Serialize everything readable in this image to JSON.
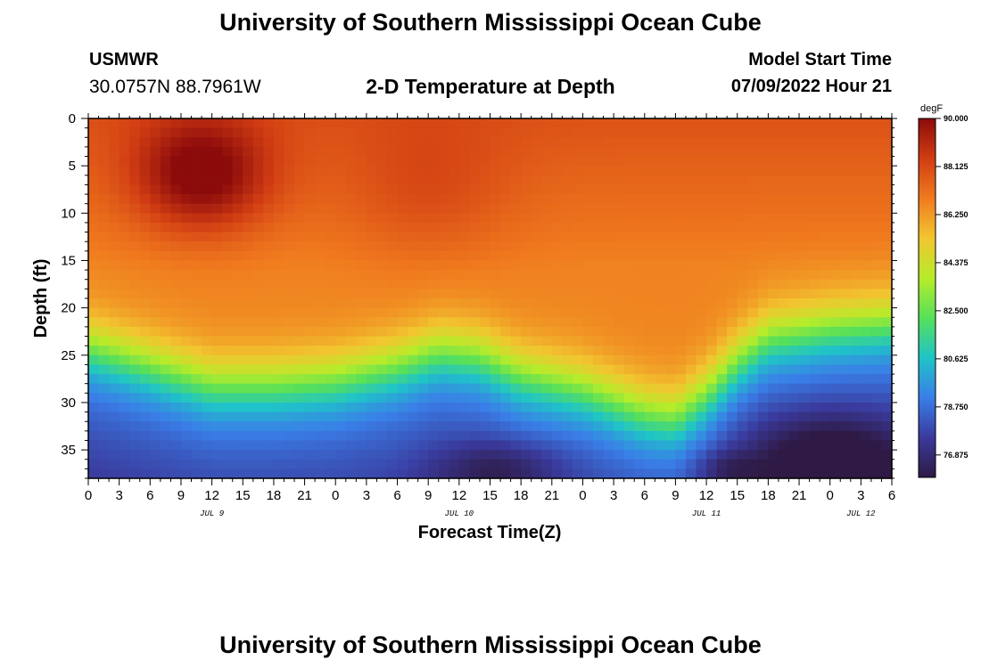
{
  "header": {
    "title": "University of Southern Mississippi Ocean Cube",
    "station": "USMWR",
    "coordinates": "30.0757N  88.7961W",
    "plot_title": "2-D Temperature at Depth",
    "model_start_label": "Model Start Time",
    "model_start_value": "07/09/2022 Hour 21"
  },
  "footer": {
    "title": "University of Southern Mississippi Ocean Cube"
  },
  "chart_data": {
    "type": "heatmap",
    "title": "2-D Temperature at Depth",
    "xlabel": "Forecast Time(Z)",
    "ylabel": "Depth (ft)",
    "x_range_hours": [
      0,
      78
    ],
    "ylim": [
      0,
      38
    ],
    "x_ticks": [
      "0",
      "3",
      "6",
      "9",
      "12",
      "15",
      "18",
      "21",
      "0",
      "3",
      "6",
      "9",
      "12",
      "15",
      "18",
      "21",
      "0",
      "3",
      "6",
      "9",
      "12",
      "15",
      "18",
      "21",
      "0",
      "3",
      "6"
    ],
    "x_tick_step_hours": 3,
    "date_labels": [
      {
        "label": "JUL 9",
        "hour": 12
      },
      {
        "label": "JUL 10",
        "hour": 36
      },
      {
        "label": "JUL 11",
        "hour": 60
      },
      {
        "label": "JUL 12",
        "hour": 75
      }
    ],
    "y_ticks": [
      "0",
      "5",
      "10",
      "15",
      "20",
      "25",
      "30",
      "35"
    ],
    "y_tick_values": [
      0,
      5,
      10,
      15,
      20,
      25,
      30,
      35
    ],
    "colorbar": {
      "unit": "degF",
      "min": 76.0,
      "max": 90.0,
      "labels": [
        "90.000",
        "88.125",
        "86.250",
        "84.375",
        "82.500",
        "80.625",
        "78.750",
        "76.875"
      ],
      "label_values": [
        90.0,
        88.125,
        86.25,
        84.375,
        82.5,
        80.625,
        78.75,
        76.875
      ],
      "colors": [
        "#2e1a45",
        "#3a3a9c",
        "#3a7ee8",
        "#1fc4c8",
        "#56e05a",
        "#b6ec2a",
        "#f2c630",
        "#f07a1e",
        "#d13d13",
        "#8c0b0b"
      ]
    },
    "thermocline": [
      {
        "hour": 0,
        "depth_ft": 24
      },
      {
        "hour": 6,
        "depth_ft": 26
      },
      {
        "hour": 12,
        "depth_ft": 28
      },
      {
        "hour": 18,
        "depth_ft": 28
      },
      {
        "hour": 24,
        "depth_ft": 27.5
      },
      {
        "hour": 30,
        "depth_ft": 26
      },
      {
        "hour": 34,
        "depth_ft": 24.5
      },
      {
        "hour": 38,
        "depth_ft": 25
      },
      {
        "hour": 42,
        "depth_ft": 27
      },
      {
        "hour": 48,
        "depth_ft": 28.5
      },
      {
        "hour": 54,
        "depth_ft": 31
      },
      {
        "hour": 57,
        "depth_ft": 31.5
      },
      {
        "hour": 60,
        "depth_ft": 29
      },
      {
        "hour": 63,
        "depth_ft": 25.5
      },
      {
        "hour": 66,
        "depth_ft": 23
      },
      {
        "hour": 72,
        "depth_ft": 22
      },
      {
        "hour": 78,
        "depth_ft": 21.5
      }
    ],
    "warm_core": {
      "hour": 11,
      "depth_ft": 6,
      "temp_f": 90.0
    }
  }
}
